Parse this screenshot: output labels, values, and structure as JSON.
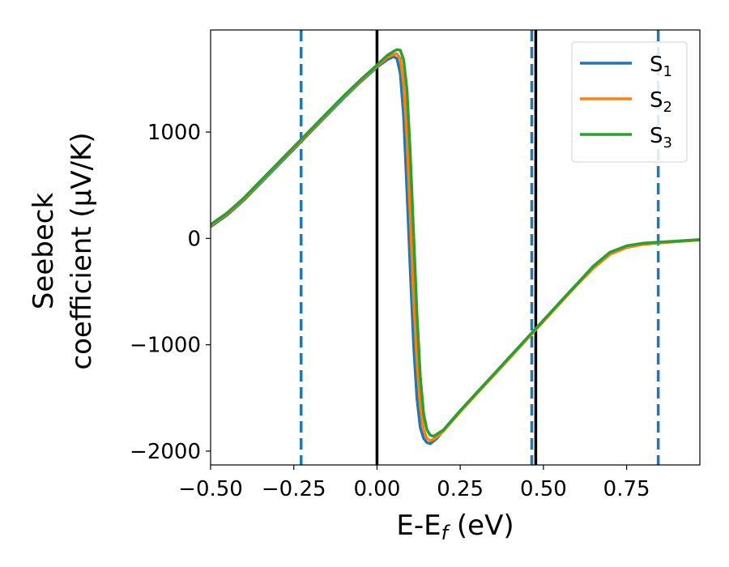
{
  "chart_data": {
    "type": "line",
    "xlabel_main": "E-E",
    "xlabel_sub": "f",
    "xlabel_unit": " (eV)",
    "ylabel_line1": "Seebeck",
    "ylabel_line2": "coefficient  (μV/K)",
    "xlim": [
      -0.5,
      0.97
    ],
    "ylim": [
      -2130,
      1960
    ],
    "x_ticks": [
      -0.5,
      -0.25,
      0.0,
      0.25,
      0.5,
      0.75
    ],
    "x_tick_labels": [
      "−0.50",
      "−0.25",
      "0.00",
      "0.25",
      "0.50",
      "0.75"
    ],
    "y_ticks": [
      -2000,
      -1000,
      0,
      1000
    ],
    "y_tick_labels": [
      "−2000",
      "−1000",
      "0",
      "1000"
    ],
    "grid": false,
    "legend_position": "top-right",
    "series": [
      {
        "name": "S",
        "sub": "1",
        "color": "#1f77b4",
        "x": [
          -0.5,
          -0.45,
          -0.4,
          -0.35,
          -0.3,
          -0.25,
          -0.2,
          -0.15,
          -0.1,
          -0.05,
          0.0,
          0.03,
          0.05,
          0.06,
          0.07,
          0.08,
          0.09,
          0.1,
          0.11,
          0.12,
          0.13,
          0.14,
          0.15,
          0.16,
          0.18,
          0.2,
          0.25,
          0.3,
          0.35,
          0.4,
          0.45,
          0.5,
          0.55,
          0.6,
          0.65,
          0.7,
          0.75,
          0.8,
          0.85,
          0.9,
          0.97
        ],
        "y": [
          110,
          220,
          360,
          520,
          680,
          840,
          1000,
          1160,
          1320,
          1470,
          1610,
          1680,
          1710,
          1690,
          1550,
          1150,
          450,
          -300,
          -1000,
          -1500,
          -1780,
          -1880,
          -1920,
          -1930,
          -1880,
          -1800,
          -1620,
          -1450,
          -1280,
          -1110,
          -940,
          -770,
          -600,
          -430,
          -270,
          -140,
          -80,
          -50,
          -40,
          -30,
          -15
        ]
      },
      {
        "name": "S",
        "sub": "2",
        "color": "#ff7f0e",
        "x": [
          -0.5,
          -0.45,
          -0.4,
          -0.35,
          -0.3,
          -0.25,
          -0.2,
          -0.15,
          -0.1,
          -0.05,
          0.0,
          0.03,
          0.05,
          0.06,
          0.07,
          0.08,
          0.09,
          0.1,
          0.11,
          0.12,
          0.13,
          0.14,
          0.15,
          0.16,
          0.17,
          0.2,
          0.25,
          0.3,
          0.35,
          0.4,
          0.45,
          0.5,
          0.55,
          0.6,
          0.65,
          0.7,
          0.75,
          0.8,
          0.85,
          0.9,
          0.97
        ],
        "y": [
          120,
          230,
          370,
          530,
          690,
          850,
          1010,
          1170,
          1330,
          1480,
          1620,
          1700,
          1730,
          1735,
          1690,
          1450,
          950,
          200,
          -550,
          -1150,
          -1580,
          -1800,
          -1880,
          -1900,
          -1890,
          -1810,
          -1630,
          -1460,
          -1290,
          -1120,
          -950,
          -780,
          -610,
          -440,
          -280,
          -150,
          -85,
          -55,
          -42,
          -30,
          -15
        ]
      },
      {
        "name": "S",
        "sub": "3",
        "color": "#2ca02c",
        "x": [
          -0.5,
          -0.45,
          -0.4,
          -0.35,
          -0.3,
          -0.25,
          -0.2,
          -0.15,
          -0.1,
          -0.05,
          0.0,
          0.03,
          0.05,
          0.06,
          0.07,
          0.08,
          0.09,
          0.1,
          0.11,
          0.12,
          0.13,
          0.14,
          0.15,
          0.16,
          0.17,
          0.2,
          0.25,
          0.3,
          0.35,
          0.4,
          0.45,
          0.5,
          0.55,
          0.6,
          0.65,
          0.7,
          0.75,
          0.8,
          0.85,
          0.9,
          0.97
        ],
        "y": [
          130,
          240,
          380,
          540,
          700,
          860,
          1020,
          1180,
          1340,
          1490,
          1630,
          1720,
          1760,
          1775,
          1770,
          1680,
          1400,
          800,
          50,
          -700,
          -1300,
          -1650,
          -1800,
          -1850,
          -1860,
          -1800,
          -1620,
          -1450,
          -1280,
          -1110,
          -940,
          -770,
          -600,
          -430,
          -260,
          -130,
          -70,
          -45,
          -35,
          -25,
          -10
        ]
      }
    ],
    "vlines": [
      {
        "x": -0.228,
        "style": "dashed",
        "color": "#1f77b4"
      },
      {
        "x": 0.0,
        "style": "solid",
        "color": "#000000"
      },
      {
        "x": 0.465,
        "style": "dashed",
        "color": "#1f77b4"
      },
      {
        "x": 0.477,
        "style": "solid",
        "color": "#000000"
      },
      {
        "x": 0.845,
        "style": "dashed",
        "color": "#1f77b4"
      }
    ]
  }
}
